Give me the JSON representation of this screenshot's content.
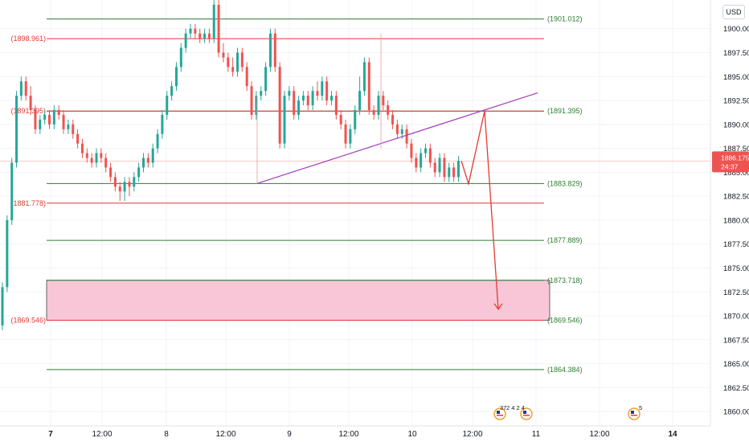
{
  "chart_data": {
    "type": "candlestick",
    "currency": "USD",
    "y_axis": {
      "ticks": [
        "1860.000",
        "1862.500",
        "1865.000",
        "1867.500",
        "1870.000",
        "1872.500",
        "1875.000",
        "1877.500",
        "1880.000",
        "1882.500",
        "1885.000",
        "1887.500",
        "1890.000",
        "1892.500",
        "1895.000",
        "1897.500",
        "1900.000"
      ],
      "ylim": [
        1858.5,
        1903
      ]
    },
    "x_axis": {
      "ticks": [
        {
          "label": "7",
          "bold": true
        },
        {
          "label": "12:00",
          "bold": false
        },
        {
          "label": "8",
          "bold": false
        },
        {
          "label": "12:00",
          "bold": false
        },
        {
          "label": "9",
          "bold": false
        },
        {
          "label": "12:00",
          "bold": false
        },
        {
          "label": "10",
          "bold": false
        },
        {
          "label": "12:00",
          "bold": false
        },
        {
          "label": "11",
          "bold": false
        },
        {
          "label": "12:00",
          "bold": false
        },
        {
          "label": "14",
          "bold": true
        }
      ]
    },
    "last_price": {
      "value": "1886.175",
      "countdown": "24:37"
    },
    "levels": [
      {
        "value": 1901.012,
        "label": "(1901.012)",
        "side": "right",
        "color": "#2e7d32"
      },
      {
        "value": 1898.961,
        "label": "(1898.961)",
        "side": "left",
        "color": "#e53935"
      },
      {
        "value": 1891.395,
        "label": "(1891.395)",
        "side": "right",
        "color": "#2e7d32"
      },
      {
        "value": 1891.395,
        "label": "(1891.395)",
        "side": "left",
        "color": "#e53935"
      },
      {
        "value": 1883.829,
        "label": "(1883.829)",
        "side": "right",
        "color": "#2e7d32"
      },
      {
        "value": 1881.778,
        "label": "(1881.778)",
        "side": "left",
        "color": "#e53935"
      },
      {
        "value": 1877.889,
        "label": "(1877.889)",
        "side": "right",
        "color": "#2e7d32"
      },
      {
        "value": 1873.718,
        "label": "(1873.718)",
        "side": "right",
        "color": "#2e7d32"
      },
      {
        "value": 1869.546,
        "label": "(1869.546)",
        "side": "right",
        "color": "#2e7d32"
      },
      {
        "value": 1869.546,
        "label": "(1869.546)",
        "side": "left",
        "color": "#e53935"
      },
      {
        "value": 1864.384,
        "label": "(1864.384)",
        "side": "right",
        "color": "#2e7d32"
      }
    ],
    "zone": {
      "from": 1869.546,
      "to": 1873.718,
      "color": "#f8c6d6"
    },
    "trendline": {
      "from": 1883.829,
      "to": 1893.3,
      "color": "#a63bbf"
    },
    "projection": [
      1886.2,
      1883.8,
      1891.4,
      1870.7
    ],
    "events": [
      {
        "icon": "us-flag-icon",
        "text": "37"
      },
      {
        "icon": "event-label",
        "text": "2 4 2 4"
      },
      {
        "icon": "us-flag-icon",
        "text": "5"
      }
    ],
    "candles": [
      [
        1869.0,
        1873.0,
        1868.5,
        1873.5
      ],
      [
        1873.0,
        1880.0,
        1872.5,
        1880.5
      ],
      [
        1880.0,
        1886.0,
        1879.5,
        1886.5
      ],
      [
        1886.0,
        1893.0,
        1885.5,
        1893.5
      ],
      [
        1893.0,
        1894.5,
        1892.5,
        1895.0
      ],
      [
        1894.5,
        1893.0,
        1892.5,
        1895.0
      ],
      [
        1893.0,
        1891.5,
        1891.0,
        1894.0
      ],
      [
        1891.5,
        1889.5,
        1889.0,
        1892.0
      ],
      [
        1889.5,
        1890.5,
        1889.0,
        1891.0
      ],
      [
        1890.5,
        1891.0,
        1890.0,
        1891.5
      ],
      [
        1891.0,
        1890.0,
        1889.5,
        1891.5
      ],
      [
        1890.0,
        1891.5,
        1889.5,
        1892.0
      ],
      [
        1891.5,
        1891.0,
        1890.5,
        1892.0
      ],
      [
        1891.0,
        1889.5,
        1889.0,
        1891.5
      ],
      [
        1889.5,
        1890.0,
        1889.0,
        1890.5
      ],
      [
        1890.0,
        1889.0,
        1888.5,
        1890.5
      ],
      [
        1889.0,
        1888.0,
        1887.5,
        1889.5
      ],
      [
        1888.0,
        1887.0,
        1886.5,
        1888.5
      ],
      [
        1887.0,
        1886.5,
        1886.0,
        1887.5
      ],
      [
        1886.5,
        1886.0,
        1885.5,
        1887.0
      ],
      [
        1886.0,
        1887.0,
        1885.5,
        1887.5
      ],
      [
        1887.0,
        1886.5,
        1886.0,
        1887.5
      ],
      [
        1886.5,
        1885.5,
        1885.0,
        1887.0
      ],
      [
        1885.5,
        1884.5,
        1884.0,
        1886.0
      ],
      [
        1884.5,
        1883.5,
        1883.0,
        1885.0
      ],
      [
        1883.5,
        1883.0,
        1882.0,
        1884.0
      ],
      [
        1883.0,
        1884.0,
        1882.0,
        1884.5
      ],
      [
        1884.0,
        1883.5,
        1882.5,
        1884.5
      ],
      [
        1883.5,
        1884.5,
        1883.0,
        1885.0
      ],
      [
        1884.5,
        1885.5,
        1884.0,
        1886.0
      ],
      [
        1885.5,
        1886.5,
        1885.0,
        1887.0
      ],
      [
        1886.5,
        1886.0,
        1885.5,
        1887.0
      ],
      [
        1886.0,
        1887.5,
        1885.5,
        1888.0
      ],
      [
        1887.5,
        1889.0,
        1887.0,
        1889.5
      ],
      [
        1889.0,
        1891.0,
        1888.5,
        1891.5
      ],
      [
        1891.0,
        1893.0,
        1890.5,
        1893.5
      ],
      [
        1893.0,
        1894.0,
        1892.5,
        1894.5
      ],
      [
        1894.0,
        1896.0,
        1893.5,
        1896.5
      ],
      [
        1896.0,
        1898.0,
        1895.5,
        1898.5
      ],
      [
        1898.0,
        1899.5,
        1897.5,
        1900.0
      ],
      [
        1899.5,
        1900.0,
        1899.0,
        1900.5
      ],
      [
        1900.0,
        1899.5,
        1899.0,
        1900.5
      ],
      [
        1899.5,
        1899.0,
        1898.5,
        1900.0
      ],
      [
        1899.0,
        1899.5,
        1898.5,
        1900.0
      ],
      [
        1899.5,
        1899.0,
        1898.5,
        1900.0
      ],
      [
        1899.0,
        1902.5,
        1898.5,
        1903.0
      ],
      [
        1902.5,
        1897.5,
        1897.0,
        1903.0
      ],
      [
        1897.5,
        1897.0,
        1896.5,
        1898.5
      ],
      [
        1897.0,
        1896.0,
        1895.5,
        1897.5
      ],
      [
        1896.0,
        1895.5,
        1895.0,
        1897.0
      ],
      [
        1895.5,
        1897.5,
        1895.0,
        1898.0
      ],
      [
        1897.5,
        1896.0,
        1895.5,
        1898.0
      ],
      [
        1896.0,
        1894.0,
        1893.5,
        1896.5
      ],
      [
        1894.0,
        1891.0,
        1890.5,
        1894.5
      ],
      [
        1891.0,
        1893.0,
        1890.5,
        1893.5
      ],
      [
        1893.0,
        1893.5,
        1892.5,
        1894.0
      ],
      [
        1893.5,
        1896.0,
        1893.0,
        1896.5
      ],
      [
        1896.0,
        1899.5,
        1895.5,
        1900.0
      ],
      [
        1899.5,
        1896.0,
        1895.5,
        1900.0
      ],
      [
        1896.0,
        1888.0,
        1887.5,
        1896.5
      ],
      [
        1888.0,
        1893.0,
        1887.5,
        1893.5
      ],
      [
        1893.0,
        1893.5,
        1892.5,
        1894.0
      ],
      [
        1893.5,
        1891.0,
        1890.5,
        1894.0
      ],
      [
        1891.0,
        1892.5,
        1890.5,
        1893.0
      ],
      [
        1892.5,
        1893.0,
        1892.0,
        1893.5
      ],
      [
        1893.0,
        1892.0,
        1891.5,
        1893.5
      ],
      [
        1892.0,
        1893.5,
        1891.5,
        1894.0
      ],
      [
        1893.5,
        1893.0,
        1892.5,
        1894.5
      ],
      [
        1893.0,
        1894.5,
        1892.5,
        1895.0
      ],
      [
        1894.5,
        1892.5,
        1892.0,
        1895.0
      ],
      [
        1892.5,
        1893.0,
        1892.0,
        1893.5
      ],
      [
        1893.0,
        1891.0,
        1890.5,
        1893.5
      ],
      [
        1891.0,
        1890.0,
        1889.5,
        1891.5
      ],
      [
        1890.0,
        1888.0,
        1887.5,
        1890.5
      ],
      [
        1888.0,
        1889.5,
        1887.5,
        1890.0
      ],
      [
        1889.5,
        1891.5,
        1889.0,
        1892.0
      ],
      [
        1891.5,
        1893.5,
        1891.0,
        1895.0
      ],
      [
        1893.5,
        1896.5,
        1893.0,
        1897.0
      ],
      [
        1896.5,
        1891.5,
        1891.0,
        1897.0
      ],
      [
        1891.5,
        1891.0,
        1890.5,
        1892.0
      ],
      [
        1891.0,
        1893.0,
        1890.5,
        1893.5
      ],
      [
        1893.0,
        1892.0,
        1891.5,
        1893.5
      ],
      [
        1892.0,
        1891.0,
        1890.5,
        1892.5
      ],
      [
        1891.0,
        1890.0,
        1889.5,
        1891.5
      ],
      [
        1890.0,
        1889.0,
        1888.5,
        1890.5
      ],
      [
        1889.0,
        1889.5,
        1888.5,
        1890.0
      ],
      [
        1889.5,
        1888.0,
        1887.5,
        1890.0
      ],
      [
        1888.0,
        1886.5,
        1886.0,
        1888.5
      ],
      [
        1886.5,
        1885.5,
        1885.0,
        1887.0
      ],
      [
        1885.5,
        1887.0,
        1885.0,
        1887.5
      ],
      [
        1887.0,
        1887.5,
        1886.5,
        1888.0
      ],
      [
        1887.5,
        1886.0,
        1885.5,
        1888.0
      ],
      [
        1886.0,
        1885.0,
        1884.5,
        1886.5
      ],
      [
        1885.0,
        1886.5,
        1884.5,
        1887.0
      ],
      [
        1886.5,
        1884.5,
        1884.0,
        1887.0
      ],
      [
        1884.5,
        1885.5,
        1884.0,
        1886.0
      ],
      [
        1885.5,
        1884.5,
        1884.0,
        1886.0
      ],
      [
        1884.5,
        1886.2,
        1884.0,
        1886.7
      ]
    ]
  }
}
